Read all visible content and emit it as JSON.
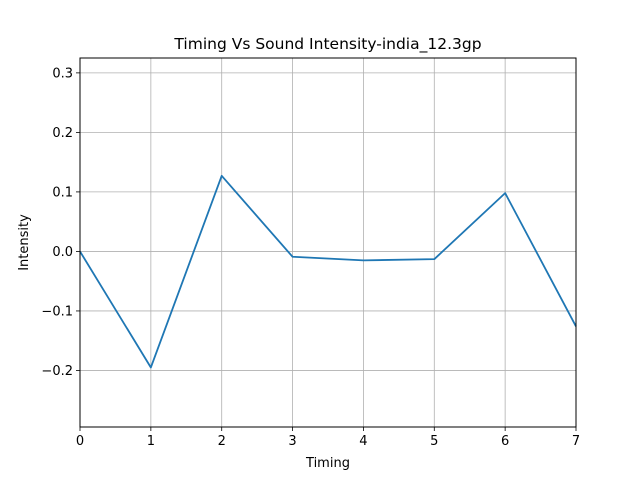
{
  "chart_data": {
    "type": "line",
    "title": "Timing Vs Sound Intensity-india_12.3gp",
    "xlabel": "Timing",
    "ylabel": "Intensity",
    "xlim": [
      0,
      7
    ],
    "ylim": [
      -0.295,
      0.325
    ],
    "grid": true,
    "x_ticks": [
      0,
      1,
      2,
      3,
      4,
      5,
      6,
      7
    ],
    "x_tick_labels": [
      "0",
      "1",
      "2",
      "3",
      "4",
      "5",
      "6",
      "7"
    ],
    "y_ticks": [
      -0.2,
      -0.1,
      0.0,
      0.1,
      0.2,
      0.3
    ],
    "y_tick_labels": [
      "−0.2",
      "−0.1",
      "0.0",
      "0.1",
      "0.2",
      "0.3"
    ],
    "series": [
      {
        "color": "#1f77b4",
        "x": [
          0,
          1,
          2,
          3,
          4,
          5,
          6,
          7
        ],
        "y": [
          0.0,
          -0.195,
          0.127,
          -0.009,
          -0.015,
          -0.013,
          0.098,
          -0.126
        ]
      }
    ]
  }
}
